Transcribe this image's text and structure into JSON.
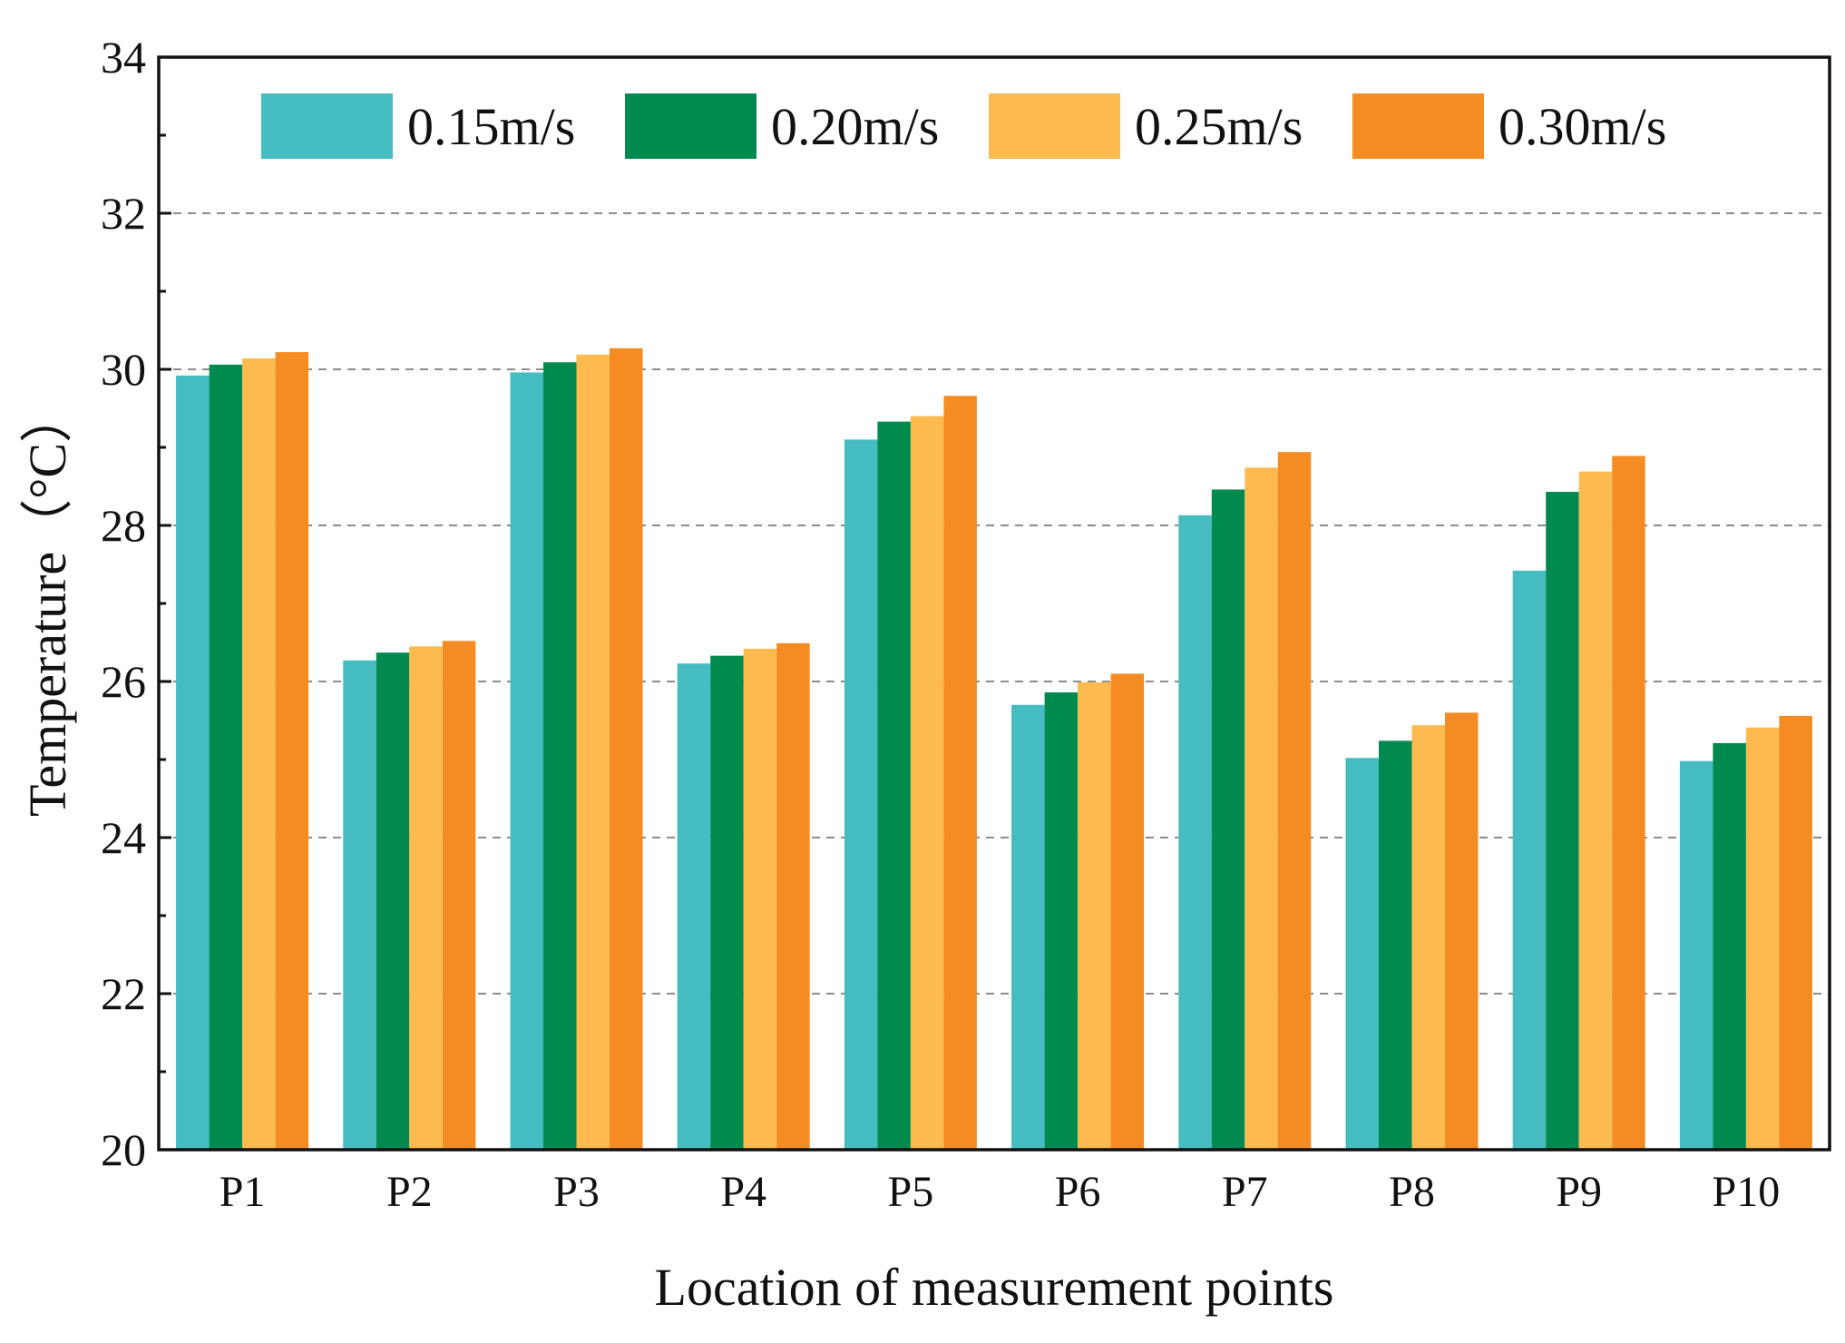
{
  "chart_data": {
    "type": "bar",
    "title": "",
    "xlabel": "Location of measurement points",
    "ylabel": "Temperature（°C）",
    "ylim": [
      20,
      34
    ],
    "yticks": [
      20,
      22,
      24,
      26,
      28,
      30,
      32,
      34
    ],
    "grid": "horizontal dashed",
    "legend_position": "top",
    "categories": [
      "P1",
      "P2",
      "P3",
      "P4",
      "P5",
      "P6",
      "P7",
      "P8",
      "P9",
      "P10"
    ],
    "series": [
      {
        "name": "0.15m/s",
        "color": "#45BCC0",
        "values": [
          29.92,
          26.27,
          29.96,
          26.23,
          29.1,
          25.7,
          28.13,
          25.02,
          27.42,
          24.98
        ]
      },
      {
        "name": "0.20m/s",
        "color": "#008A50",
        "values": [
          30.06,
          26.37,
          30.09,
          26.33,
          29.33,
          25.86,
          28.46,
          25.24,
          28.43,
          25.21
        ]
      },
      {
        "name": "0.25m/s",
        "color": "#FDBA4E",
        "values": [
          30.14,
          26.45,
          30.19,
          26.42,
          29.4,
          25.99,
          28.74,
          25.44,
          28.69,
          25.41
        ]
      },
      {
        "name": "0.30m/s",
        "color": "#F58B23",
        "values": [
          30.22,
          26.52,
          30.27,
          26.49,
          29.66,
          26.1,
          28.94,
          25.6,
          28.89,
          25.56
        ]
      }
    ]
  }
}
